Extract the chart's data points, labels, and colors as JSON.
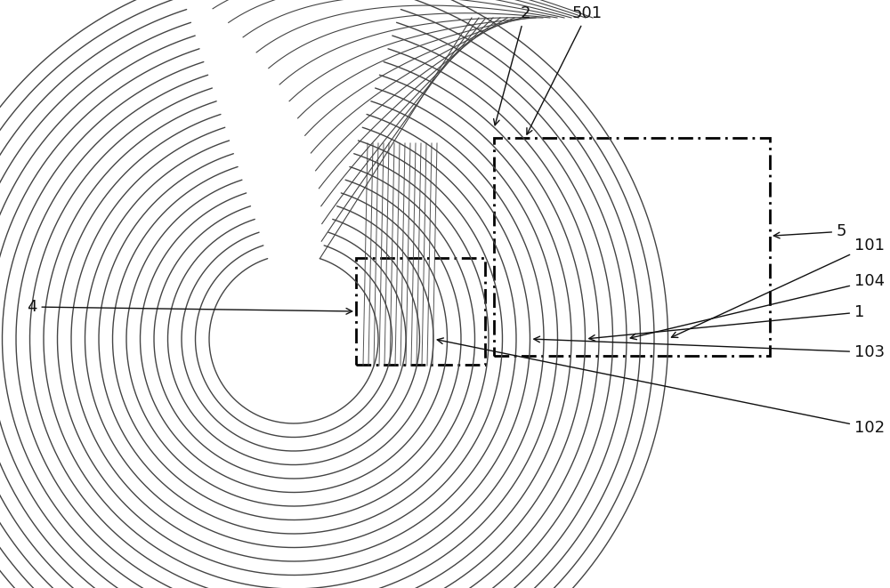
{
  "background_color": "#ffffff",
  "coil_color": "#444444",
  "coil_linewidth": 1.0,
  "n_turns": 22,
  "figsize": [
    10.0,
    6.61
  ],
  "dpi": 100,
  "label_fontsize": 13,
  "label_color": "#111111"
}
